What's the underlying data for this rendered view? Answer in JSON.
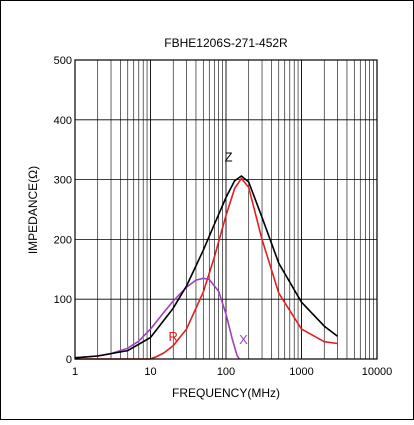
{
  "chart_data": {
    "type": "line",
    "title": "FBHE1206S-271-452R",
    "xlabel": "FREQUENCY(MHz)",
    "ylabel": "IMPEDANCE(Ω)",
    "x_scale": "log",
    "xlim": [
      1,
      10000
    ],
    "ylim": [
      0,
      500
    ],
    "x_ticks": [
      1,
      10,
      100,
      1000,
      10000
    ],
    "x_tick_labels": [
      "1",
      "10",
      "100",
      "1000",
      "10000"
    ],
    "y_ticks": [
      0,
      100,
      200,
      300,
      400,
      500
    ],
    "y_tick_labels": [
      "0",
      "100",
      "200",
      "300",
      "400",
      "500"
    ],
    "grid": true,
    "legend": "inline labels near curves",
    "series": [
      {
        "name": "Z",
        "color": "#000000",
        "x": [
          1,
          2,
          5,
          10,
          20,
          30,
          50,
          70,
          100,
          130,
          160,
          200,
          300,
          500,
          1000,
          2000,
          3000
        ],
        "y": [
          2,
          5,
          14,
          36,
          85,
          122,
          182,
          225,
          270,
          298,
          306,
          296,
          237,
          160,
          95,
          55,
          38
        ]
      },
      {
        "name": "R",
        "color": "#e02020",
        "x": [
          1,
          5,
          10,
          12,
          15,
          20,
          30,
          50,
          70,
          100,
          130,
          160,
          200,
          300,
          500,
          1000,
          2000,
          3000
        ],
        "y": [
          0,
          0,
          0,
          4,
          10,
          22,
          50,
          112,
          170,
          240,
          285,
          302,
          287,
          200,
          110,
          50,
          29,
          26
        ]
      },
      {
        "name": "X",
        "color": "#a040c0",
        "x": [
          1,
          2,
          3,
          5,
          7,
          10,
          15,
          20,
          30,
          40,
          50,
          60,
          80,
          100,
          120,
          140,
          150
        ],
        "y": [
          2,
          5,
          9,
          18,
          30,
          50,
          78,
          97,
          120,
          132,
          135,
          133,
          113,
          75,
          35,
          6,
          0
        ]
      }
    ]
  }
}
